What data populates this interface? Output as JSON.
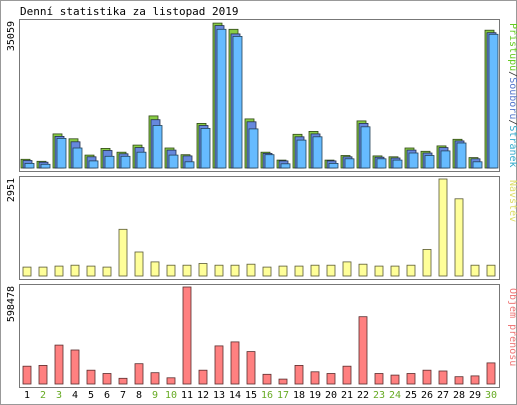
{
  "chart_data": [
    {
      "type": "bar",
      "title": "Denní statistika za listopad 2019",
      "ylabel_parts": [
        {
          "text": "Přístupů",
          "color": "#66cc22"
        },
        {
          "text": "/",
          "color": "#333333"
        },
        {
          "text": "Souborů",
          "color": "#5577cc"
        },
        {
          "text": "/",
          "color": "#333333"
        },
        {
          "text": "Stránek",
          "color": "#33aacc"
        }
      ],
      "ymax_label": "35059",
      "ylim": [
        0,
        35059
      ],
      "categories": [
        "1",
        "2",
        "3",
        "4",
        "5",
        "6",
        "7",
        "8",
        "9",
        "10",
        "11",
        "12",
        "13",
        "14",
        "15",
        "16",
        "17",
        "18",
        "19",
        "20",
        "21",
        "22",
        "23",
        "24",
        "25",
        "26",
        "27",
        "28",
        "29",
        "30"
      ],
      "weekend_days": [
        "2",
        "3",
        "9",
        "10",
        "16",
        "17",
        "23",
        "24",
        "30"
      ],
      "series": [
        {
          "name": "Přístupů",
          "color": "#88cc44",
          "values": [
            2100,
            1600,
            8200,
            7000,
            3100,
            4700,
            3800,
            5500,
            12500,
            4800,
            3200,
            10700,
            34800,
            33300,
            11800,
            3800,
            1900,
            8100,
            8800,
            1900,
            3000,
            11300,
            2900,
            2700,
            4800,
            4000,
            5300,
            6900,
            2500,
            33100
          ]
        },
        {
          "name": "Souborů",
          "color": "#6688dd",
          "values": [
            1800,
            1400,
            7600,
            6300,
            2700,
            4200,
            3400,
            4900,
            11600,
            4300,
            2900,
            10200,
            34200,
            32200,
            11100,
            3500,
            1700,
            7500,
            8200,
            1700,
            2700,
            10700,
            2600,
            2400,
            4300,
            3600,
            4900,
            6500,
            2200,
            32500
          ]
        },
        {
          "name": "Stránek",
          "color": "#66bbff",
          "values": [
            1100,
            900,
            7100,
            4800,
            1700,
            2800,
            2800,
            3800,
            10200,
            3100,
            1500,
            9500,
            33300,
            31600,
            9400,
            3200,
            1000,
            6700,
            7500,
            1100,
            2200,
            9900,
            2200,
            1900,
            3600,
            3000,
            4100,
            6000,
            1500,
            32100
          ]
        }
      ]
    },
    {
      "type": "bar",
      "title": "",
      "ylabel": "Návštěv",
      "ylabel_color": "#dddd66",
      "ymax_label": "2951",
      "ylim": [
        0,
        2951
      ],
      "categories": [
        "1",
        "2",
        "3",
        "4",
        "5",
        "6",
        "7",
        "8",
        "9",
        "10",
        "11",
        "12",
        "13",
        "14",
        "15",
        "16",
        "17",
        "18",
        "19",
        "20",
        "21",
        "22",
        "23",
        "24",
        "25",
        "26",
        "27",
        "28",
        "29",
        "30"
      ],
      "series": [
        {
          "name": "Návštěv",
          "color": "#ffff99",
          "values": [
            270,
            270,
            300,
            330,
            300,
            270,
            1420,
            730,
            430,
            330,
            330,
            380,
            330,
            330,
            360,
            270,
            300,
            300,
            330,
            330,
            430,
            360,
            300,
            300,
            330,
            810,
            2951,
            2350,
            330,
            330
          ]
        }
      ]
    },
    {
      "type": "bar",
      "title": "",
      "ylabel": "Objem přenosu",
      "ylabel_color": "#ee7777",
      "ymax_label": "598478",
      "ylim": [
        0,
        598478
      ],
      "categories": [
        "1",
        "2",
        "3",
        "4",
        "5",
        "6",
        "7",
        "8",
        "9",
        "10",
        "11",
        "12",
        "13",
        "14",
        "15",
        "16",
        "17",
        "18",
        "19",
        "20",
        "21",
        "22",
        "23",
        "24",
        "25",
        "26",
        "27",
        "28",
        "29",
        "30"
      ],
      "series": [
        {
          "name": "Objem přenosu",
          "color": "#ff8080",
          "values": [
            110000,
            115000,
            240000,
            210000,
            85000,
            65000,
            35000,
            125000,
            70000,
            38000,
            598478,
            85000,
            235000,
            260000,
            200000,
            60000,
            30000,
            115000,
            75000,
            65000,
            110000,
            415000,
            65000,
            55000,
            65000,
            85000,
            80000,
            45000,
            50000,
            130000
          ]
        }
      ]
    }
  ]
}
